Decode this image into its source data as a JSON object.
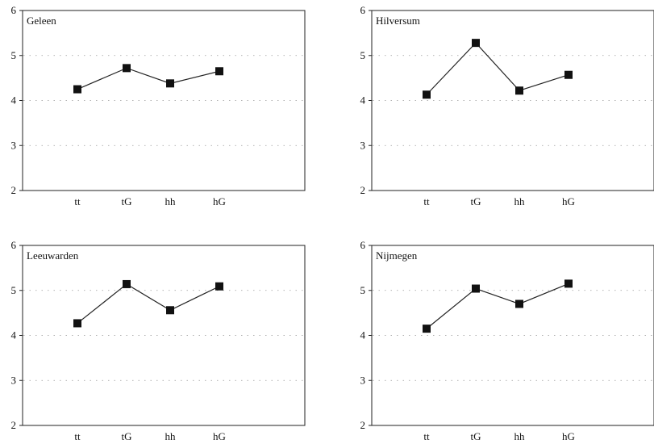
{
  "chart_data": [
    {
      "type": "line",
      "title": "Geleen",
      "categories": [
        "tt",
        "tG",
        "hh",
        "hG"
      ],
      "values": [
        4.25,
        4.72,
        4.38,
        4.65
      ],
      "yticks": [
        2,
        3,
        4,
        5,
        6
      ],
      "ylim": [
        2,
        6
      ],
      "grid": "dotted-horizontal",
      "marker": "square",
      "line_color": "#222222"
    },
    {
      "type": "line",
      "title": "Hilversum",
      "categories": [
        "tt",
        "tG",
        "hh",
        "hG"
      ],
      "values": [
        4.13,
        5.28,
        4.22,
        4.57
      ],
      "yticks": [
        2,
        3,
        4,
        5,
        6
      ],
      "ylim": [
        2,
        6
      ],
      "grid": "dotted-horizontal",
      "marker": "square",
      "line_color": "#222222"
    },
    {
      "type": "line",
      "title": "Leeuwarden",
      "categories": [
        "tt",
        "tG",
        "hh",
        "hG"
      ],
      "values": [
        4.27,
        5.14,
        4.56,
        5.09
      ],
      "yticks": [
        2,
        3,
        4,
        5,
        6
      ],
      "ylim": [
        2,
        6
      ],
      "grid": "dotted-horizontal",
      "marker": "square",
      "line_color": "#222222"
    },
    {
      "type": "line",
      "title": "Nijmegen",
      "categories": [
        "tt",
        "tG",
        "hh",
        "hG"
      ],
      "values": [
        4.15,
        5.04,
        4.7,
        5.15
      ],
      "yticks": [
        2,
        3,
        4,
        5,
        6
      ],
      "ylim": [
        2,
        6
      ],
      "grid": "dotted-horizontal",
      "marker": "square",
      "line_color": "#222222"
    }
  ]
}
